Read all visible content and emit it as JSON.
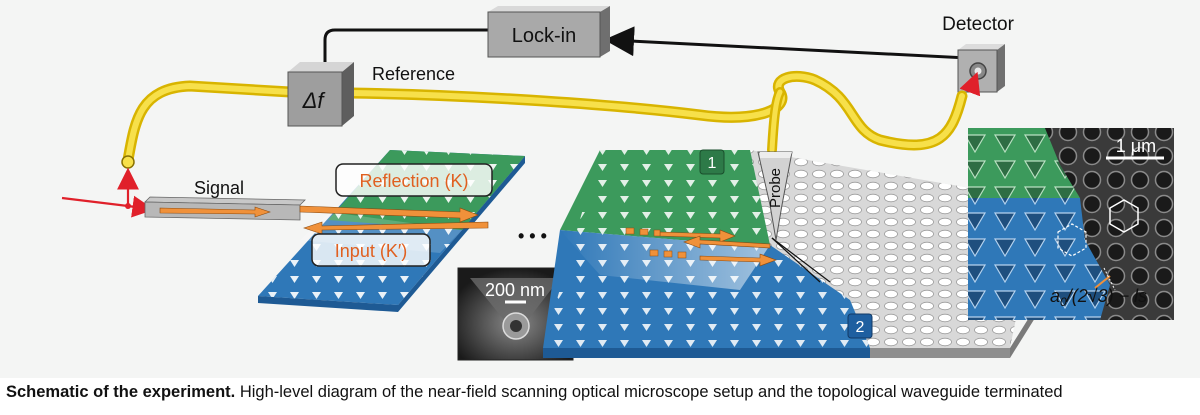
{
  "figure": {
    "lockin_label": "Lock-in",
    "detector_label": "Detector",
    "delta_f_label": "Δf",
    "reference_label": "Reference",
    "signal_label": "Signal",
    "reflection_label": "Reflection (K)",
    "input_label": "Input (K′)",
    "ellipsis": "• • •",
    "probe_label": "Probe",
    "marker_1": "1",
    "marker_2": "2",
    "scalebar_200": "200 nm",
    "scalebar_1um": "1 μm",
    "formula_a0": "a",
    "formula_sub": "0",
    "formula_rest": "/(2√3) − ls"
  },
  "caption": {
    "title": "Schematic of the experiment.",
    "text": " High-level diagram of the near-field scanning optical microscope setup and the topological waveguide terminated"
  },
  "colors": {
    "fiber": "#f2d21e",
    "green": "#3c9a5c",
    "blue": "#2f78b8",
    "orange": "#f0913a",
    "red": "#e0202a",
    "label_text": "#e06020"
  }
}
